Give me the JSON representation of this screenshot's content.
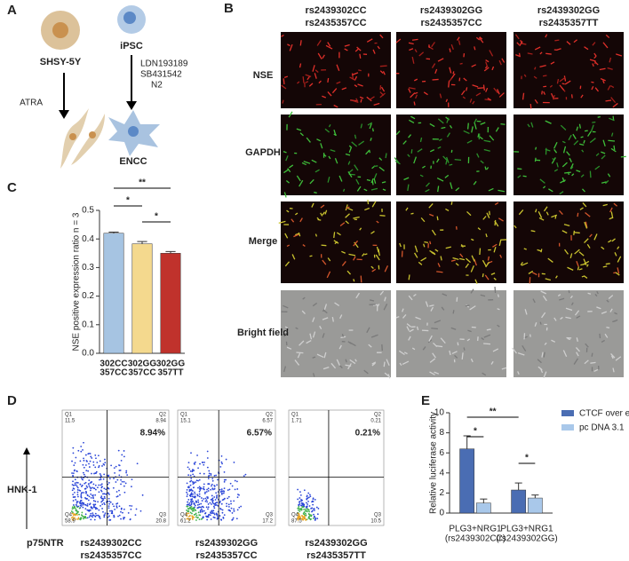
{
  "panel_labels": [
    "A",
    "B",
    "C",
    "D",
    "E"
  ],
  "panel_a": {
    "cell1": "SHSY-5Y",
    "cell2": "iPSC",
    "treatment1": "ATRA",
    "treatment2": [
      "LDN193189",
      "SB431542",
      "N2"
    ],
    "result": "ENCC"
  },
  "panel_b": {
    "columns": [
      [
        "rs2439302CC",
        "rs2435357CC"
      ],
      [
        "rs2439302GG",
        "rs2435357CC"
      ],
      [
        "rs2439302GG",
        "rs2435357TT"
      ]
    ],
    "rows": [
      "NSE",
      "GAPDH",
      "Merge",
      "Bright field"
    ]
  },
  "panel_d": {
    "y_axis": "HNK-1",
    "x_axis": "p75NTR",
    "plots": [
      {
        "label": [
          "rs2439302CC",
          "rs2435357CC"
        ],
        "percent": "8.94%",
        "quadrants": [
          {
            "name": "Q1",
            "value": 11.5
          },
          {
            "name": "Q2",
            "value": 8.94
          },
          {
            "name": "Q3",
            "value": 20.8
          },
          {
            "name": "Q4",
            "value": 58.9
          }
        ]
      },
      {
        "label": [
          "rs2439302GG",
          "rs2435357CC"
        ],
        "percent": "6.57%",
        "quadrants": [
          {
            "name": "Q1",
            "value": 15.1
          },
          {
            "name": "Q2",
            "value": 6.57
          },
          {
            "name": "Q3",
            "value": 17.2
          },
          {
            "name": "Q4",
            "value": 61.2
          }
        ]
      },
      {
        "label": [
          "rs2439302GG",
          "rs2435357TT"
        ],
        "percent": "0.21%",
        "quadrants": [
          {
            "name": "Q1",
            "value": 1.71
          },
          {
            "name": "Q2",
            "value": 0.21
          },
          {
            "name": "Q3",
            "value": 10.5
          },
          {
            "name": "Q4",
            "value": 87.5
          }
        ]
      }
    ]
  },
  "chart_data": [
    {
      "type": "bar",
      "ylabel": "NSE positive expression ratio n = 3",
      "categories": [
        [
          "302CC",
          "357CC"
        ],
        [
          "302GG",
          "357CC"
        ],
        [
          "302GG",
          "357TT"
        ]
      ],
      "values": [
        0.42,
        0.383,
        0.35
      ],
      "errors": [
        0.004,
        0.008,
        0.006
      ],
      "colors": [
        "#a6c4e2",
        "#f4d98e",
        "#c0322c"
      ],
      "ylim": [
        0,
        0.5
      ],
      "yticks": [
        {
          "value": 0,
          "label": "0.0"
        },
        0.1,
        0.2,
        0.3,
        0.4,
        0.5
      ],
      "annotations": [
        "**",
        "*",
        "*"
      ]
    },
    {
      "type": "bar",
      "ylabel": "Relative luciferase activity",
      "categories": [
        [
          "PLG3+NRG1",
          "(rs2439302CC)"
        ],
        [
          "PLG3+NRG1",
          "(rs2439302GG)"
        ]
      ],
      "series": [
        {
          "name": "CTCF over expression",
          "color": "#4a6db3",
          "values": [
            6.4,
            2.3
          ],
          "errors": [
            1.3,
            0.7
          ]
        },
        {
          "name": "pc DNA 3.1",
          "color": "#a9c8ea",
          "values": [
            1.0,
            1.5
          ],
          "errors": [
            0.4,
            0.3
          ]
        }
      ],
      "ylim": [
        0,
        10
      ],
      "yticks": [
        0,
        2,
        4,
        6,
        8,
        10
      ],
      "annotations": [
        "**",
        "*",
        "*"
      ]
    }
  ]
}
